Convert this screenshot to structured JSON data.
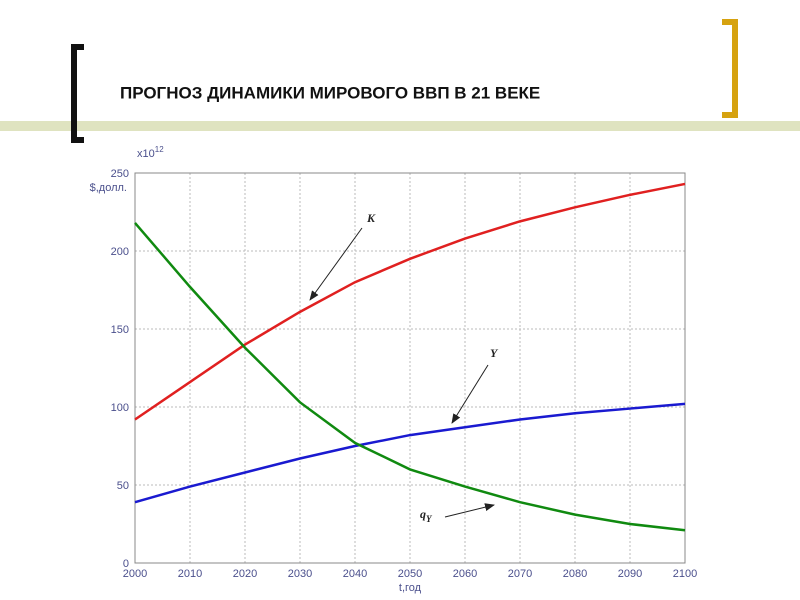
{
  "slide_title": "ПРОГНОЗ ДИНАМИКИ МИРОВОГО ВВП В 21 ВЕКЕ",
  "chart_data": {
    "type": "line",
    "y_label": "$,долл.",
    "y_scale_base": "x10",
    "y_scale_exponent": "12",
    "x_label": "t,год",
    "x": [
      2000,
      2010,
      2020,
      2030,
      2040,
      2050,
      2060,
      2070,
      2080,
      2090,
      2100
    ],
    "series": [
      {
        "name": "K",
        "color": "#e02020",
        "values": [
          92,
          116,
          140,
          161,
          180,
          195,
          208,
          219,
          228,
          236,
          243
        ]
      },
      {
        "name": "Y",
        "color": "#1a1ad0",
        "values": [
          39,
          49,
          58,
          67,
          75,
          82,
          87,
          92,
          96,
          99,
          102
        ]
      },
      {
        "name": "q",
        "name_subscript": "Y",
        "color": "#108a10",
        "values": [
          218,
          177,
          138,
          103,
          77,
          60,
          49,
          39,
          31,
          25,
          21
        ]
      }
    ],
    "xlim": [
      2000,
      2100
    ],
    "xticks": [
      2000,
      2010,
      2020,
      2030,
      2040,
      2050,
      2060,
      2070,
      2080,
      2090,
      2100
    ],
    "ylim": [
      0,
      250
    ],
    "yticks": [
      0,
      50,
      100,
      150,
      200,
      250
    ],
    "grid": true
  }
}
